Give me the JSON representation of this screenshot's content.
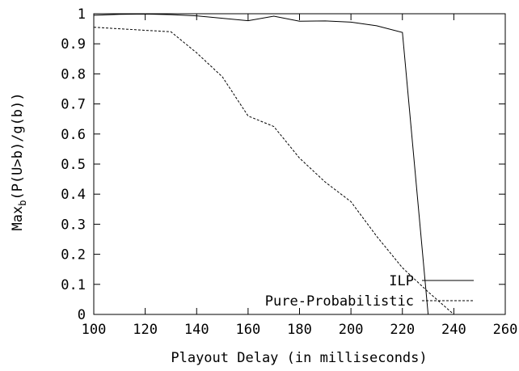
{
  "chart_data": {
    "type": "line",
    "title": "",
    "xlabel": "Playout Delay (in milliseconds)",
    "ylabel": "Max_b(P(U>b)/g(b))",
    "ylabel_parts": {
      "main": "Max",
      "sub": "b",
      "rest": "(P(U>b)/g(b))"
    },
    "xlim": [
      100,
      260
    ],
    "ylim": [
      0,
      1
    ],
    "xticks": [
      "100",
      "120",
      "140",
      "160",
      "180",
      "200",
      "220",
      "240",
      "260"
    ],
    "yticks": [
      "0",
      "0.1",
      "0.2",
      "0.3",
      "0.4",
      "0.5",
      "0.6",
      "0.7",
      "0.8",
      "0.9",
      "1"
    ],
    "grid": false,
    "legend_position": "bottom-right",
    "series": [
      {
        "name": "ILP",
        "style": "solid",
        "color": "#000000",
        "x": [
          100,
          110,
          120,
          130,
          140,
          150,
          160,
          170,
          180,
          190,
          200,
          210,
          220,
          230
        ],
        "y": [
          0.995,
          0.998,
          0.999,
          0.997,
          0.993,
          0.985,
          0.977,
          0.992,
          0.975,
          0.976,
          0.972,
          0.96,
          0.938,
          0.0
        ]
      },
      {
        "name": "Pure-Probabilistic",
        "style": "dashed",
        "color": "#000000",
        "x": [
          100,
          110,
          120,
          130,
          140,
          150,
          160,
          170,
          180,
          190,
          200,
          210,
          220,
          230,
          240
        ],
        "y": [
          0.955,
          0.95,
          0.945,
          0.94,
          0.87,
          0.79,
          0.66,
          0.625,
          0.52,
          0.44,
          0.375,
          0.26,
          0.155,
          0.075,
          0.0
        ]
      }
    ]
  }
}
